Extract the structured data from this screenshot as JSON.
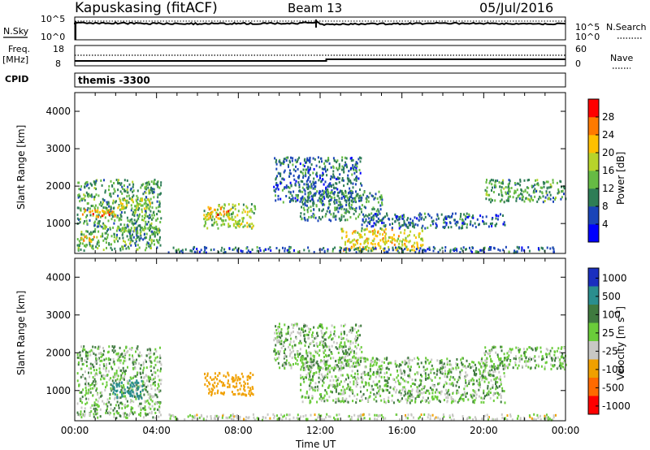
{
  "header": {
    "title": "Kapuskasing (fitACF)",
    "beam": "Beam 13",
    "date": "05/Jul/2016"
  },
  "strip_sky": {
    "left_label": "N.Sky",
    "right_label": "N.Search",
    "left_ticks": [
      "10^5",
      "10^0"
    ],
    "right_ticks": [
      "10^5",
      "10^0"
    ]
  },
  "strip_freq": {
    "left_label_1": "Freq.",
    "left_label_2": "[MHz]",
    "right_label": "Nave",
    "left_ticks": [
      "18",
      "8"
    ],
    "right_ticks": [
      "60",
      "0"
    ]
  },
  "cpid": {
    "label": "CPID",
    "value": "themis -3300"
  },
  "chart_data": [
    {
      "type": "heatmap",
      "panel": "power",
      "ylabel": "Slant Range [km]",
      "ylim": [
        200,
        4500
      ],
      "y_ticks": [
        "4000",
        "3000",
        "2000",
        "1000"
      ],
      "x_ticks": [
        "00:00",
        "04:00",
        "08:00",
        "12:00",
        "16:00",
        "20:00",
        "00:00"
      ],
      "colorbar": {
        "label": "Power [dB]",
        "ticks": [
          "28",
          "24",
          "20",
          "16",
          "12",
          "8",
          "4"
        ],
        "colors": [
          "#0000ff",
          "#1a44b8",
          "#2e7d56",
          "#66bb44",
          "#b7d42a",
          "#ffc000",
          "#ff7a00",
          "#ff0000"
        ]
      },
      "regions": [
        {
          "t0": 0.1,
          "t1": 4.2,
          "r0": 300,
          "r1": 2200,
          "level": 10
        },
        {
          "t0": 0.2,
          "t1": 2.0,
          "r0": 1200,
          "r1": 1400,
          "level": 22
        },
        {
          "t0": 2.0,
          "t1": 3.7,
          "r0": 1400,
          "r1": 1700,
          "level": 16
        },
        {
          "t0": 0.3,
          "t1": 1.0,
          "r0": 500,
          "r1": 700,
          "level": 20
        },
        {
          "t0": 2.0,
          "t1": 3.2,
          "r0": 750,
          "r1": 950,
          "level": 12
        },
        {
          "t0": 6.2,
          "t1": 8.8,
          "r0": 900,
          "r1": 1550,
          "level": 14
        },
        {
          "t0": 6.5,
          "t1": 7.6,
          "r0": 1150,
          "r1": 1450,
          "level": 22
        },
        {
          "t0": 9.7,
          "t1": 14.0,
          "r0": 1600,
          "r1": 2800,
          "level": 6
        },
        {
          "t0": 11.0,
          "t1": 15.0,
          "r0": 1100,
          "r1": 1900,
          "level": 8
        },
        {
          "t0": 13.0,
          "t1": 17.0,
          "r0": 300,
          "r1": 900,
          "level": 18
        },
        {
          "t0": 14.0,
          "t1": 21.0,
          "r0": 900,
          "r1": 1300,
          "level": 6
        },
        {
          "t0": 20.0,
          "t1": 24.0,
          "r0": 1600,
          "r1": 2200,
          "level": 10
        },
        {
          "t0": 4.5,
          "t1": 23.5,
          "r0": 250,
          "r1": 400,
          "level": 6
        }
      ]
    },
    {
      "type": "heatmap",
      "panel": "velocity",
      "ylabel": "Slant Range [km]",
      "ylim": [
        200,
        4500
      ],
      "y_ticks": [
        "4000",
        "3000",
        "2000",
        "1000"
      ],
      "x_ticks": [
        "00:00",
        "04:00",
        "08:00",
        "12:00",
        "16:00",
        "20:00",
        "00:00"
      ],
      "xlabel": "Time UT",
      "colorbar": {
        "label": "Velocity [m s",
        "label_sup": "-1",
        "label_end": "]",
        "ticks": [
          "1000",
          "500",
          "100",
          "25",
          "-25",
          "-100",
          "-500",
          "-1000"
        ],
        "colors": [
          "#1a2fbf",
          "#2a8e8e",
          "#3f7a3f",
          "#6acc3a",
          "#c8c8c4",
          "#f0a000",
          "#ff6a00",
          "#ff0000"
        ]
      },
      "regions": [
        {
          "t0": 0.1,
          "t1": 4.2,
          "r0": 300,
          "r1": 2200,
          "v": 0
        },
        {
          "t0": 1.8,
          "t1": 3.3,
          "r0": 800,
          "r1": 1300,
          "v": 150
        },
        {
          "t0": 6.3,
          "t1": 8.7,
          "r0": 900,
          "r1": 1500,
          "v": -300
        },
        {
          "t0": 9.7,
          "t1": 14.0,
          "r0": 1600,
          "r1": 2800,
          "v": 0
        },
        {
          "t0": 11.0,
          "t1": 21.0,
          "r0": 700,
          "r1": 1900,
          "v": 0
        },
        {
          "t0": 20.0,
          "t1": 24.0,
          "r0": 1600,
          "r1": 2200,
          "v": 0
        },
        {
          "t0": 4.5,
          "t1": 23.5,
          "r0": 250,
          "r1": 400,
          "v": -50
        }
      ]
    }
  ]
}
